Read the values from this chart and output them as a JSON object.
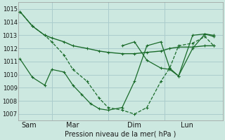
{
  "bg_color": "#cce8e0",
  "grid_color": "#aacccc",
  "line_color": "#1a6b2a",
  "marker_color": "#1a6b2a",
  "xlabel": "Pression niveau de la mer( hPa )",
  "xtick_labels": [
    "Sam",
    "Mar",
    "Dim",
    "Lun"
  ],
  "xtick_positions": [
    0.5,
    3.0,
    6.5,
    9.5
  ],
  "ylim": [
    1006.5,
    1015.5
  ],
  "yticks": [
    1007,
    1008,
    1009,
    1010,
    1011,
    1012,
    1013,
    1014,
    1015
  ],
  "xlim": [
    -0.1,
    11.5
  ],
  "vlines_x": [
    1.8,
    5.0,
    8.2
  ],
  "series": [
    {
      "x": [
        0,
        0.7,
        1.4,
        1.8,
        2.5,
        3.0,
        3.8,
        4.5,
        5.0,
        5.8,
        6.5,
        7.2,
        8.0,
        8.5,
        9.0,
        9.8,
        10.5,
        11.0
      ],
      "y": [
        1014.8,
        1013.7,
        1013.0,
        1012.8,
        1012.5,
        1012.2,
        1012.0,
        1011.8,
        1011.7,
        1011.6,
        1011.6,
        1011.7,
        1011.8,
        1012.0,
        1012.1,
        1012.1,
        1012.2,
        1012.2
      ],
      "linestyle": "-",
      "linewidth": 1.0
    },
    {
      "x": [
        0,
        0.7,
        1.4,
        1.8,
        2.5,
        3.0,
        3.8,
        4.5,
        5.0,
        5.8,
        6.5,
        7.2,
        8.0,
        8.5,
        9.0,
        9.8,
        10.5,
        11.0
      ],
      "y": [
        1014.8,
        1013.7,
        1013.0,
        1012.5,
        1011.5,
        1010.4,
        1009.5,
        1008.2,
        1007.5,
        1007.3,
        1007.0,
        1007.5,
        1009.5,
        1010.5,
        1012.2,
        1012.4,
        1012.9,
        1012.2
      ],
      "linestyle": "--",
      "linewidth": 0.9
    },
    {
      "x": [
        0,
        0.7,
        1.4,
        1.8,
        2.5,
        3.0,
        3.5,
        4.0,
        4.5,
        5.0,
        5.8,
        6.5,
        7.2,
        8.0,
        8.5,
        9.0,
        9.8,
        10.5,
        11.0
      ],
      "y": [
        1011.2,
        1009.8,
        1009.2,
        1010.4,
        1010.2,
        1009.2,
        1008.5,
        1007.8,
        1007.4,
        1007.3,
        1007.5,
        1009.5,
        1012.2,
        1012.5,
        1010.5,
        1009.9,
        1012.0,
        1013.1,
        1013.0
      ],
      "linestyle": "-",
      "linewidth": 0.9
    },
    {
      "x": [
        5.8,
        6.5,
        7.2,
        8.0,
        8.5,
        9.0,
        9.8,
        10.5,
        11.0
      ],
      "y": [
        1012.2,
        1012.5,
        1011.1,
        1010.5,
        1010.4,
        1009.9,
        1013.0,
        1013.1,
        1012.9
      ],
      "linestyle": "-",
      "linewidth": 0.9
    }
  ]
}
